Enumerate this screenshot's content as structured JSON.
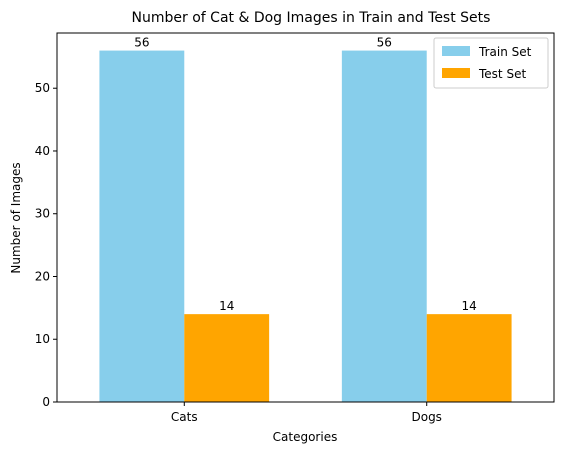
{
  "chart_data": {
    "type": "bar",
    "title": "Number of Cat & Dog Images in Train and Test Sets",
    "xlabel": "Categories",
    "ylabel": "Number of Images",
    "categories": [
      "Cats",
      "Dogs"
    ],
    "series": [
      {
        "name": "Train Set",
        "values": [
          56,
          56
        ],
        "color": "#87CEEB"
      },
      {
        "name": "Test Set",
        "values": [
          14,
          14
        ],
        "color": "#FFA500"
      }
    ],
    "ylim": [
      0,
      58.8
    ],
    "yticks": [
      0,
      10,
      20,
      30,
      40,
      50
    ],
    "grid": false,
    "legend_position": "top-right",
    "data_labels": true
  }
}
